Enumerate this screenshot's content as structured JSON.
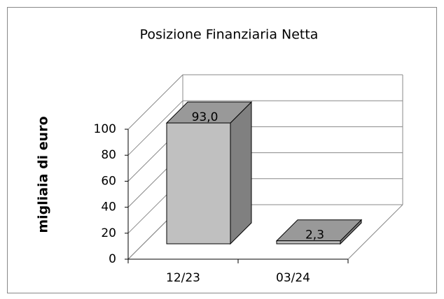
{
  "chart_data": {
    "type": "bar3d",
    "title": "Posizione Finanziaria Netta",
    "ylabel": "migliaia di euro",
    "categories": [
      "12/23",
      "03/24"
    ],
    "values": [
      93.0,
      2.3
    ],
    "value_labels": [
      "93,0",
      "2,3"
    ],
    "color": "#c0c0c0",
    "ylim": [
      0,
      100
    ],
    "yticks": [
      0,
      20,
      40,
      60,
      80,
      100
    ],
    "grid": true
  }
}
